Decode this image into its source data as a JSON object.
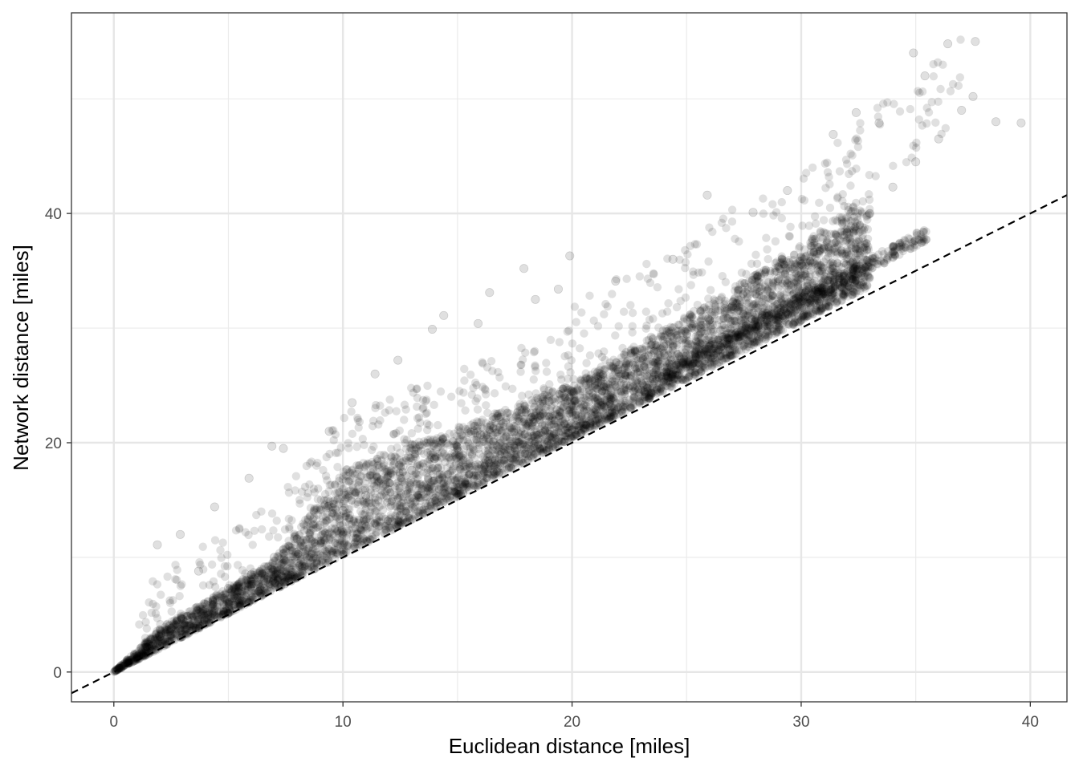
{
  "chart_data": {
    "type": "scatter",
    "xlabel": "Euclidean distance [miles]",
    "ylabel": "Network distance [miles]",
    "xlim": [
      -1.85,
      41.6
    ],
    "ylim": [
      -2.6,
      57.5
    ],
    "x_ticks": [
      0,
      10,
      20,
      30,
      40
    ],
    "x_tick_labels": [
      "0",
      "10",
      "20",
      "30",
      "40"
    ],
    "y_ticks": [
      0,
      20,
      40
    ],
    "y_tick_labels": [
      "0",
      "20",
      "40"
    ],
    "x_minor_gridlines": [
      5,
      15,
      25,
      35
    ],
    "y_minor_gridlines": [
      10,
      30,
      50
    ],
    "grid": true,
    "legend": "none",
    "point_color": "#000000",
    "point_alpha": 0.12,
    "reference_line": {
      "style": "dashed",
      "color": "#000000",
      "slope": 1,
      "intercept": 0
    },
    "series": [
      {
        "description_points": "sampled cloud",
        "x": [
          0.1,
          0.3,
          0.5,
          1,
          1.5,
          2,
          2.5,
          3,
          4,
          5,
          6,
          7,
          8,
          9,
          10,
          11,
          12,
          13,
          14,
          15,
          16,
          17,
          18,
          19,
          20,
          21,
          22,
          23,
          24,
          25,
          26,
          27,
          28,
          29,
          30,
          31,
          32,
          33,
          34,
          35,
          36,
          37,
          37.5,
          38.5,
          39.6,
          1.9,
          2.9,
          3.7,
          4.4,
          5.9,
          6.9,
          7.4,
          9.4,
          10.4,
          11.4,
          12.4,
          13.9,
          14.4,
          15.9,
          16.4,
          17.9,
          18.4,
          19.4,
          19.9,
          21.9,
          24.4,
          25.9,
          27.9,
          29.4,
          31.4,
          32.4,
          33.4,
          34.9,
          35.4,
          36.4,
          37.6
        ],
        "y": [
          0.2,
          0.5,
          0.8,
          1.6,
          2.4,
          3.1,
          3.8,
          4.6,
          5.9,
          7.3,
          8.5,
          10.0,
          11.6,
          12.8,
          14.1,
          15.4,
          16.5,
          17.6,
          18.6,
          19.6,
          20.7,
          21.7,
          22.7,
          23.6,
          24.5,
          25.4,
          26.4,
          27.4,
          28.4,
          29.5,
          30.7,
          31.9,
          33.0,
          34.3,
          35.6,
          36.9,
          38.3,
          40.0,
          42.3,
          44.5,
          46.5,
          49.0,
          50.2,
          48.0,
          47.9,
          11.1,
          12.0,
          8.8,
          14.4,
          16.9,
          19.7,
          19.5,
          21.0,
          23.5,
          26.0,
          27.2,
          29.9,
          31.1,
          30.4,
          33.1,
          35.2,
          32.5,
          33.4,
          36.3,
          34.1,
          36.0,
          41.6,
          40.1,
          42.0,
          46.9,
          48.8,
          47.9,
          54.0,
          52.0,
          54.8,
          55.0
        ]
      }
    ]
  }
}
